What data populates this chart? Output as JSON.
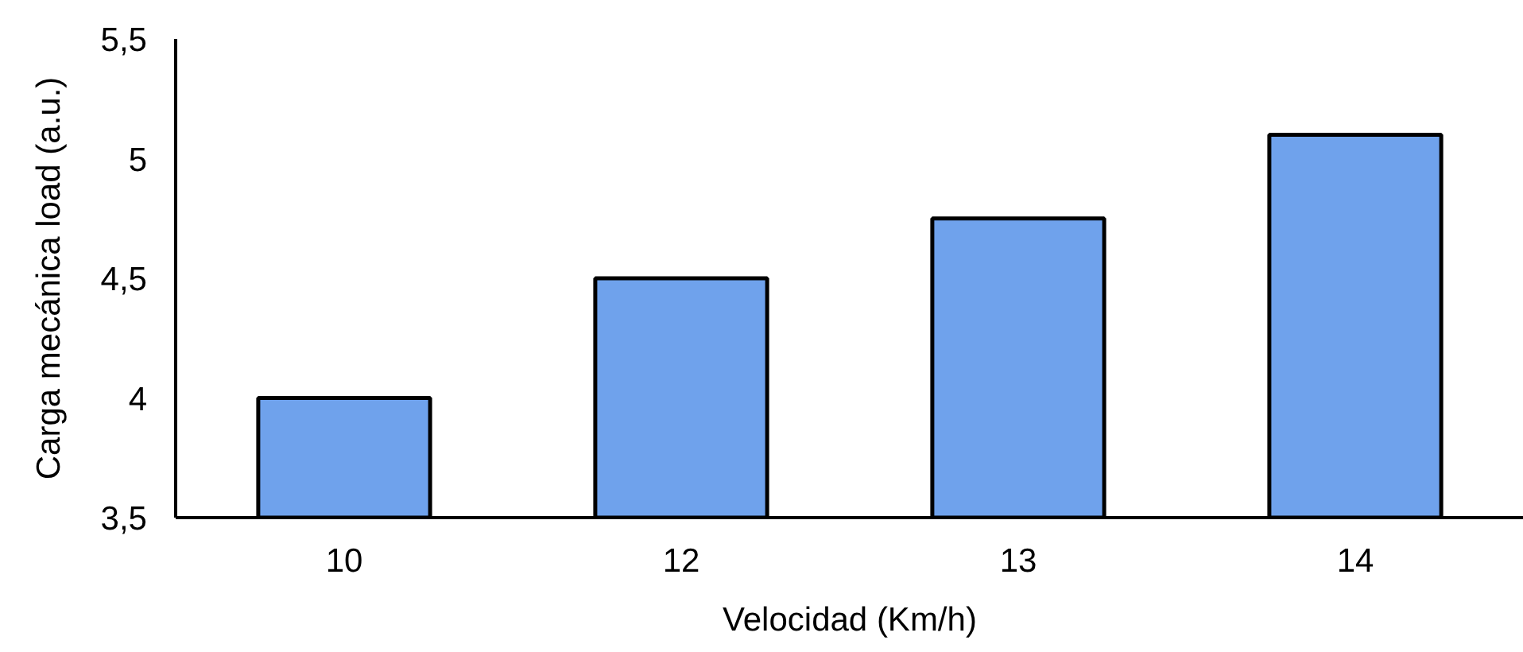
{
  "chart_data": {
    "type": "bar",
    "xlabel": "Velocidad (Km/h)",
    "ylabel": "Carga mecánica load (a.u.)",
    "categories": [
      "10",
      "12",
      "13",
      "14"
    ],
    "values": [
      4.0,
      4.5,
      4.75,
      5.1
    ],
    "color": "#6fa2ec",
    "ylim": [
      3.5,
      5.5
    ],
    "yticks": [
      {
        "value": 3.5,
        "label": "3,5"
      },
      4,
      {
        "value": 4.5,
        "label": "4,5"
      },
      5,
      {
        "value": 5.5,
        "label": "5,5"
      }
    ]
  }
}
